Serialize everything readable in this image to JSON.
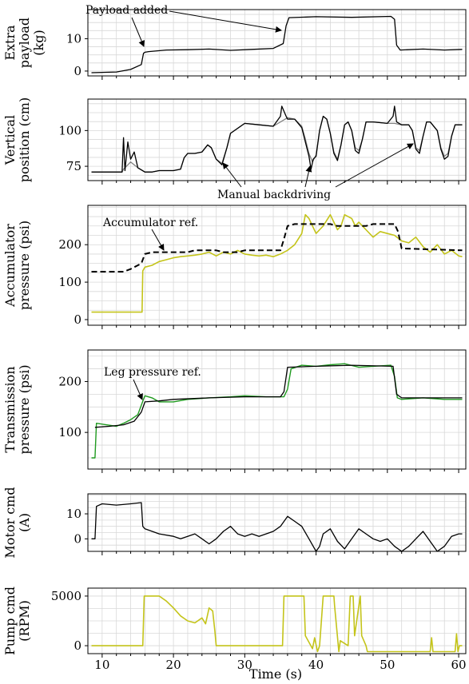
{
  "xaxis": {
    "label": "Time (s)",
    "range": [
      8,
      61
    ],
    "major_ticks": [
      10,
      20,
      30,
      40,
      50,
      60
    ],
    "tick_labels": [
      "10",
      "20",
      "30",
      "40",
      "50",
      "60"
    ]
  },
  "colors": {
    "black": "#000000",
    "gray": "#808080",
    "olive": "#c4c41a",
    "green": "#1f9a1f",
    "grid": "#d8d8d8"
  },
  "annotations": {
    "payload_added": "Payload added",
    "manual_backdriving": "Manual backdriving",
    "accumulator_ref": "Accumulator ref.",
    "leg_pressure_ref": "Leg pressure ref."
  },
  "chart_data": [
    {
      "id": "payload",
      "type": "line",
      "ylabel": [
        "Extra",
        "payload",
        "(kg)"
      ],
      "ylim": [
        -1.5,
        19
      ],
      "yticks": [
        0,
        10
      ],
      "grid": true,
      "series": [
        {
          "style": "black",
          "x": [
            8.5,
            12,
            14,
            15.5,
            15.8,
            16,
            16.5,
            19,
            22,
            25,
            28,
            31,
            34,
            35.4,
            35.8,
            36.2,
            40,
            45,
            50.5,
            51,
            51.3,
            51.8,
            55,
            58,
            60.5
          ],
          "y": [
            -0.5,
            -0.3,
            0.5,
            2,
            5.5,
            5.8,
            6,
            6.5,
            6.6,
            6.8,
            6.4,
            6.7,
            7,
            8.5,
            14,
            16.5,
            16.8,
            16.6,
            16.9,
            16,
            8,
            6.5,
            6.8,
            6.5,
            6.7
          ]
        }
      ]
    },
    {
      "id": "vertical",
      "type": "line",
      "ylabel": [
        "Vertical",
        "position (cm)"
      ],
      "ylim": [
        65,
        122
      ],
      "yticks": [
        75,
        100
      ],
      "grid": true,
      "series": [
        {
          "style": "gray",
          "x": [
            8.5,
            12,
            12.8,
            13,
            13.6,
            14,
            15,
            16,
            17,
            18,
            19,
            20,
            21,
            21.5,
            22,
            23,
            24,
            24.8,
            25.3,
            26,
            26.8,
            27.5,
            28,
            30,
            32,
            34,
            36,
            37,
            38,
            38.5,
            39,
            39.5,
            40,
            40.5,
            41,
            41.5,
            42,
            42.5,
            43,
            43.5,
            44,
            44.5,
            45,
            45.5,
            46,
            46.5,
            47,
            48,
            50,
            51,
            52,
            53,
            53.5,
            54,
            54.5,
            55,
            55.5,
            56,
            57,
            57.5,
            58,
            58.5,
            59,
            59.5,
            60,
            60.5
          ],
          "y": [
            71,
            71,
            71,
            73,
            76,
            78,
            74,
            71,
            71,
            72,
            72,
            72,
            73,
            81,
            84,
            84,
            85,
            90,
            88,
            80,
            77,
            88,
            98,
            105,
            104,
            103,
            109,
            108,
            103,
            94,
            84,
            78,
            83,
            100,
            110,
            108,
            98,
            85,
            80,
            90,
            104,
            106,
            100,
            88,
            86,
            94,
            106,
            106,
            105,
            105,
            104,
            104,
            100,
            88,
            86,
            96,
            106,
            106,
            100,
            88,
            82,
            84,
            96,
            104,
            104,
            104
          ]
        },
        {
          "style": "black",
          "x": [
            8.5,
            12,
            12.8,
            13,
            13.2,
            13.6,
            14,
            14.5,
            15,
            16,
            17,
            18,
            19,
            20,
            21,
            21.5,
            22,
            23,
            24,
            24.8,
            25.3,
            26,
            26.8,
            27.5,
            28,
            30,
            32,
            34,
            35,
            35.2,
            35.8,
            36,
            37,
            38,
            38.5,
            39,
            39.3,
            39.6,
            40,
            40.5,
            41,
            41.5,
            42,
            42.5,
            43,
            43.5,
            44,
            44.5,
            45,
            45.5,
            46,
            46.5,
            47,
            48,
            50,
            50.8,
            51,
            51.3,
            52,
            53,
            53.5,
            54,
            54.5,
            55,
            55.5,
            56,
            57,
            57.5,
            58,
            58.5,
            59,
            59.5,
            60,
            60.5
          ],
          "y": [
            71,
            71,
            71,
            95,
            72,
            92,
            80,
            85,
            74,
            71,
            71,
            72,
            72,
            72,
            73,
            81,
            84,
            84,
            85,
            90,
            88,
            80,
            76,
            88,
            98,
            105,
            104,
            103,
            110,
            117,
            110,
            108,
            108,
            102,
            92,
            82,
            73,
            80,
            82,
            100,
            110,
            108,
            98,
            84,
            79,
            90,
            104,
            106,
            100,
            86,
            84,
            94,
            106,
            106,
            105,
            110,
            117,
            106,
            104,
            104,
            100,
            87,
            84,
            96,
            106,
            106,
            100,
            87,
            80,
            82,
            96,
            104,
            104,
            104
          ]
        }
      ]
    },
    {
      "id": "accumulator",
      "type": "line",
      "ylabel": [
        "Accumulator",
        "pressure (psi)"
      ],
      "ylim": [
        -15,
        305
      ],
      "yticks": [
        0,
        100,
        200
      ],
      "grid": true,
      "series": [
        {
          "style": "olive",
          "x": [
            8.5,
            12,
            15.6,
            15.7,
            16,
            17,
            18,
            19,
            20,
            21,
            22,
            23,
            24,
            25,
            26,
            27,
            28,
            29,
            30,
            31,
            32,
            33,
            34,
            35,
            36,
            37,
            38,
            38.5,
            39,
            39.5,
            40,
            40.5,
            41,
            42,
            42.5,
            43,
            43.5,
            44,
            45,
            45.5,
            46,
            46.5,
            47,
            48,
            49,
            50,
            51,
            52,
            53,
            54,
            55,
            56,
            57,
            58,
            59,
            60,
            60.5
          ],
          "y": [
            20,
            20,
            20,
            130,
            140,
            145,
            155,
            160,
            165,
            168,
            170,
            172,
            175,
            180,
            170,
            180,
            175,
            185,
            175,
            172,
            170,
            172,
            168,
            175,
            185,
            200,
            230,
            280,
            270,
            250,
            230,
            240,
            250,
            280,
            260,
            240,
            250,
            280,
            270,
            250,
            260,
            250,
            240,
            220,
            235,
            230,
            225,
            210,
            205,
            220,
            195,
            180,
            200,
            175,
            185,
            170,
            168
          ]
        },
        {
          "style": "dashed",
          "x": [
            8.5,
            13,
            14,
            15.5,
            16,
            17,
            18,
            22,
            23,
            26,
            27,
            29,
            30,
            35,
            35.5,
            36,
            37,
            38,
            42,
            43,
            47,
            48,
            51,
            51.5,
            52,
            60.5
          ],
          "y": [
            128,
            128,
            135,
            150,
            175,
            180,
            180,
            180,
            185,
            185,
            180,
            180,
            185,
            185,
            215,
            250,
            255,
            255,
            255,
            250,
            250,
            255,
            255,
            235,
            190,
            185
          ]
        }
      ]
    },
    {
      "id": "transmission",
      "type": "line",
      "ylabel": [
        "Transmission",
        "pressure (psi)"
      ],
      "ylim": [
        28,
        262
      ],
      "yticks": [
        100,
        200
      ],
      "grid": true,
      "series": [
        {
          "style": "green",
          "x": [
            8.5,
            9,
            9.2,
            12,
            13,
            14,
            15,
            15.8,
            16,
            17,
            18,
            20,
            22,
            25,
            28,
            30,
            33,
            35.5,
            36,
            36.5,
            38,
            40,
            42,
            44,
            46,
            48,
            50.5,
            51,
            51.4,
            52,
            55,
            58,
            60.5
          ],
          "y": [
            50,
            50,
            118,
            112,
            118,
            125,
            135,
            165,
            172,
            168,
            160,
            160,
            165,
            168,
            170,
            172,
            170,
            170,
            185,
            225,
            232,
            230,
            233,
            235,
            228,
            230,
            232,
            210,
            168,
            165,
            168,
            165,
            165
          ]
        },
        {
          "style": "black",
          "x": [
            9,
            11,
            13,
            14.5,
            15.5,
            16,
            18,
            20,
            25,
            30,
            35,
            35.5,
            36,
            40,
            45,
            50.8,
            51.3,
            52,
            60.5
          ],
          "y": [
            110,
            112,
            115,
            122,
            140,
            160,
            162,
            165,
            168,
            170,
            170,
            180,
            228,
            230,
            232,
            230,
            175,
            168,
            168
          ]
        }
      ]
    },
    {
      "id": "motor",
      "type": "line",
      "ylabel": [
        "Motor cmd",
        "(A)"
      ],
      "ylim": [
        -5,
        18
      ],
      "yticks": [
        0,
        10
      ],
      "grid": true,
      "series": [
        {
          "style": "black",
          "x": [
            8.5,
            9,
            9.2,
            10,
            12,
            14,
            15.5,
            15.7,
            16,
            18,
            20,
            21,
            22,
            23,
            24,
            25,
            26,
            27,
            28,
            29,
            30,
            31,
            32,
            33,
            34,
            35,
            36,
            37,
            38,
            39,
            40,
            40.5,
            41,
            42,
            43,
            44,
            45,
            46,
            47,
            48,
            49,
            50,
            51,
            52,
            53,
            54,
            55,
            56,
            57,
            58,
            59,
            60,
            60.5
          ],
          "y": [
            0,
            0,
            13,
            14,
            13.5,
            14,
            14.5,
            5,
            4,
            2,
            1,
            0,
            1,
            2,
            0,
            -2,
            0,
            3,
            5,
            2,
            1,
            2,
            1,
            2,
            3,
            5,
            9,
            7,
            5,
            0,
            -5,
            -3,
            2,
            4,
            -1,
            -4,
            0,
            4,
            2,
            0,
            -1,
            0,
            -3,
            -5,
            -3,
            0,
            3,
            -1,
            -5,
            -3,
            1,
            2,
            2
          ]
        }
      ]
    },
    {
      "id": "pump",
      "type": "line",
      "ylabel": [
        "Pump cmd",
        "(RPM)"
      ],
      "ylim": [
        -800,
        5800
      ],
      "yticks": [
        0,
        5000
      ],
      "grid": true,
      "series": [
        {
          "style": "olive",
          "x": [
            8.5,
            15.7,
            15.9,
            18,
            19,
            20,
            21,
            22,
            23,
            24,
            24.5,
            25,
            25.5,
            25.8,
            26,
            35.3,
            35.5,
            38.3,
            38.5,
            39.5,
            39.8,
            40.2,
            40.5,
            41,
            41.2,
            42.5,
            42.6,
            43.2,
            43.4,
            44.5,
            44.8,
            45.2,
            45.4,
            46.2,
            46.4,
            47,
            47.2,
            56,
            56.2,
            56.4,
            56.6,
            59.5,
            59.7,
            59.9,
            60.1,
            60.5
          ],
          "y": [
            0,
            0,
            5000,
            5000,
            4500,
            3800,
            3000,
            2500,
            2300,
            2800,
            2200,
            3800,
            3500,
            1500,
            0,
            0,
            5000,
            5000,
            1000,
            -300,
            800,
            -600,
            0,
            5000,
            5000,
            5000,
            4000,
            -600,
            500,
            0,
            5000,
            5000,
            1000,
            5000,
            1000,
            0,
            -600,
            -600,
            800,
            -600,
            -600,
            -600,
            1200,
            -600,
            0,
            0
          ]
        }
      ]
    }
  ]
}
